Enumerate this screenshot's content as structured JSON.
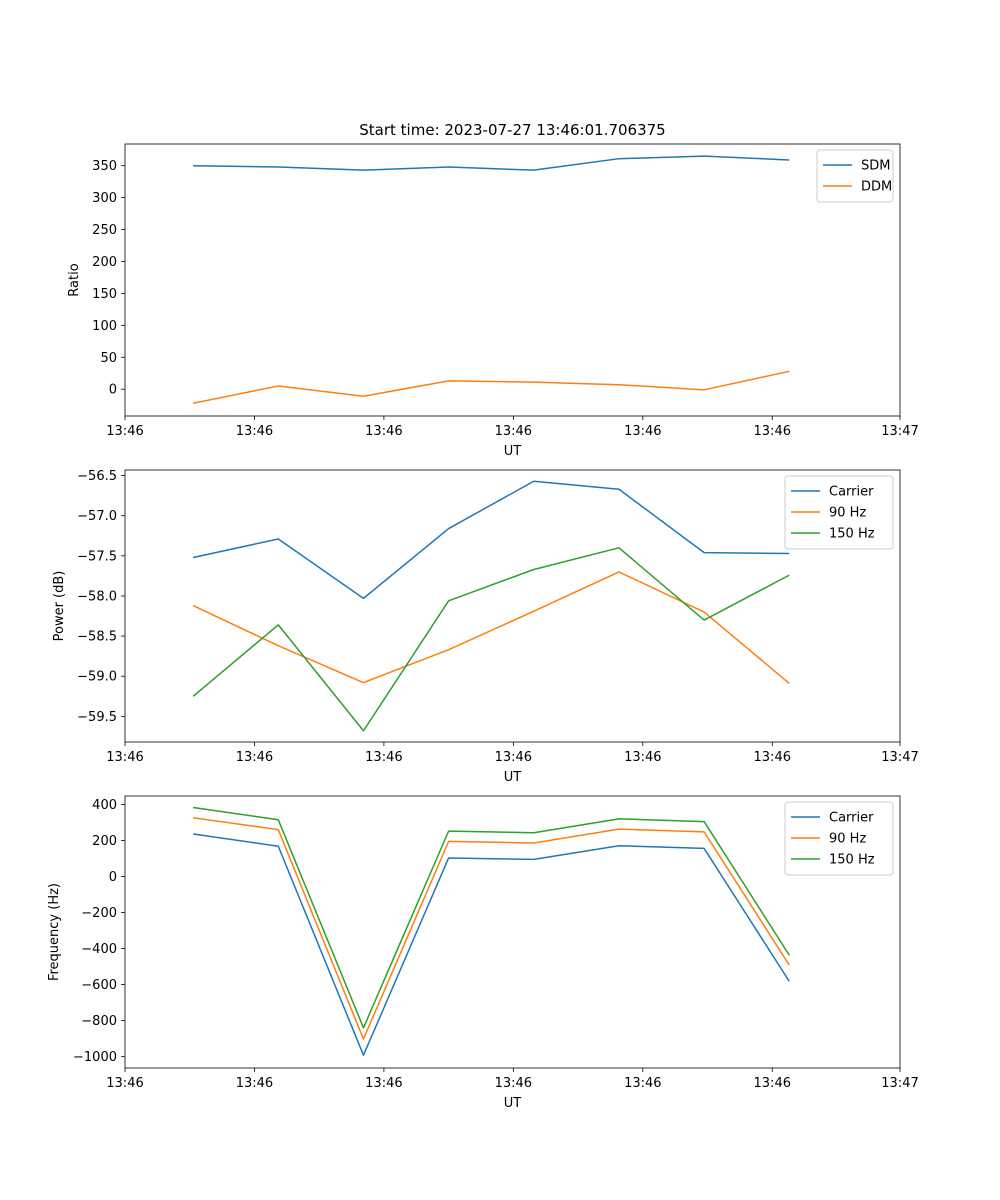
{
  "figure_title": "Start time: 2023-07-27 13:46:01.706375",
  "chart_data": [
    {
      "type": "line",
      "title": "Start time: 2023-07-27 13:46:01.706375",
      "xlabel": "UT",
      "ylabel": "Ratio",
      "x": [
        1,
        2,
        3,
        4,
        5,
        6,
        7,
        8
      ],
      "xlim": [
        0.2,
        9.3
      ],
      "xticks": [
        0.2,
        1.72,
        3.24,
        4.76,
        6.28,
        7.8,
        9.3
      ],
      "xtick_labels": [
        "13:46",
        "13:46",
        "13:46",
        "13:46",
        "13:46",
        "13:46",
        "13:47"
      ],
      "ylim": [
        -42,
        384
      ],
      "yticks": [
        0,
        50,
        100,
        150,
        200,
        250,
        300,
        350
      ],
      "ytick_labels": [
        "0",
        "50",
        "100",
        "150",
        "200",
        "250",
        "300",
        "350"
      ],
      "legend_position": "top-right",
      "series": [
        {
          "name": "SDM",
          "color": "#1f77b4",
          "values": [
            350,
            348,
            343,
            348,
            343,
            361,
            365,
            359
          ]
        },
        {
          "name": "DDM",
          "color": "#ff7f0e",
          "values": [
            -22,
            5,
            -11,
            13,
            11,
            7,
            -1,
            28
          ]
        }
      ]
    },
    {
      "type": "line",
      "title": "",
      "xlabel": "UT",
      "ylabel": "Power (dB)",
      "x": [
        1,
        2,
        3,
        4,
        5,
        6,
        7,
        8
      ],
      "xlim": [
        0.2,
        9.3
      ],
      "xticks": [
        0.2,
        1.72,
        3.24,
        4.76,
        6.28,
        7.8,
        9.3
      ],
      "xtick_labels": [
        "13:46",
        "13:46",
        "13:46",
        "13:46",
        "13:46",
        "13:46",
        "13:47"
      ],
      "ylim": [
        -59.82,
        -56.43
      ],
      "yticks": [
        -59.5,
        -59.0,
        -58.5,
        -58.0,
        -57.5,
        -57.0,
        -56.5
      ],
      "ytick_labels": [
        "−59.5",
        "−59.0",
        "−58.5",
        "−58.0",
        "−57.5",
        "−57.0",
        "−56.5"
      ],
      "legend_position": "top-right",
      "series": [
        {
          "name": "Carrier",
          "color": "#1f77b4",
          "values": [
            -57.52,
            -57.29,
            -58.03,
            -57.16,
            -56.57,
            -56.67,
            -57.46,
            -57.47
          ]
        },
        {
          "name": "90 Hz",
          "color": "#ff7f0e",
          "values": [
            -58.12,
            -58.62,
            -59.08,
            -58.67,
            -58.19,
            -57.7,
            -58.2,
            -59.09
          ]
        },
        {
          "name": "150 Hz",
          "color": "#2ca02c",
          "values": [
            -59.25,
            -58.36,
            -59.68,
            -58.06,
            -57.67,
            -57.4,
            -58.3,
            -57.74
          ]
        }
      ]
    },
    {
      "type": "line",
      "title": "",
      "xlabel": "UT",
      "ylabel": "Frequency (Hz)",
      "x": [
        1,
        2,
        3,
        4,
        5,
        6,
        7,
        8
      ],
      "xlim": [
        0.2,
        9.3
      ],
      "xticks": [
        0.2,
        1.72,
        3.24,
        4.76,
        6.28,
        7.8,
        9.3
      ],
      "xtick_labels": [
        "13:46",
        "13:46",
        "13:46",
        "13:46",
        "13:46",
        "13:46",
        "13:47"
      ],
      "ylim": [
        -1063,
        447
      ],
      "yticks": [
        -1000,
        -800,
        -600,
        -400,
        -200,
        0,
        200,
        400
      ],
      "ytick_labels": [
        "−1000",
        "−800",
        "−600",
        "−400",
        "−200",
        "0",
        "200",
        "400"
      ],
      "legend_position": "top-right",
      "series": [
        {
          "name": "Carrier",
          "color": "#1f77b4",
          "values": [
            236,
            168,
            -992,
            103,
            95,
            171,
            156,
            -582
          ]
        },
        {
          "name": "90 Hz",
          "color": "#ff7f0e",
          "values": [
            326,
            260,
            -902,
            195,
            186,
            263,
            248,
            -492
          ]
        },
        {
          "name": "150 Hz",
          "color": "#2ca02c",
          "values": [
            383,
            315,
            -840,
            252,
            243,
            320,
            305,
            -437
          ]
        }
      ]
    }
  ]
}
